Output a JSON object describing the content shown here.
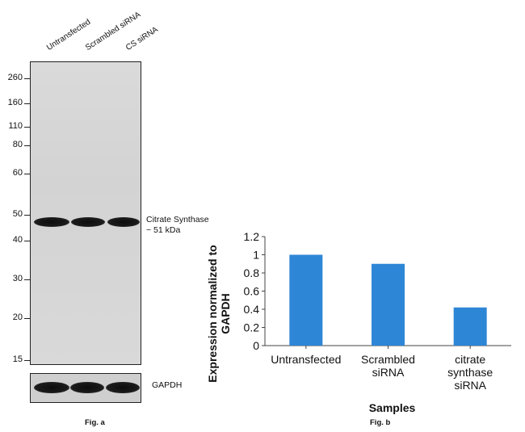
{
  "blot": {
    "lanes": [
      "Untransfected",
      "Scrambled siRNA",
      "CS siRNA"
    ],
    "markers": [
      "260",
      "160",
      "110",
      "80",
      "60",
      "50",
      "40",
      "30",
      "20",
      "15"
    ],
    "band_label_line1": "Citrate Synthase",
    "band_label_line2": "~ 51 kDa",
    "loading_control": "GAPDH",
    "caption": "Fig. a"
  },
  "chart_caption": "Fig. b",
  "chart_data": {
    "type": "bar",
    "categories": [
      [
        "Untransfected"
      ],
      [
        "Scrambled",
        "siRNA"
      ],
      [
        "citrate",
        "synthase",
        "siRNA"
      ]
    ],
    "values": [
      1.0,
      0.9,
      0.42
    ],
    "xlabel": "Samples",
    "ylabel_line1": "Expression normalized to",
    "ylabel_line2": "GAPDH",
    "yticks": [
      "0",
      "0.2",
      "0.4",
      "0.6",
      "0.8",
      "1",
      "1.2"
    ],
    "ylim": [
      0,
      1.2
    ],
    "grid": false,
    "bar_color": "#2e86d6"
  }
}
